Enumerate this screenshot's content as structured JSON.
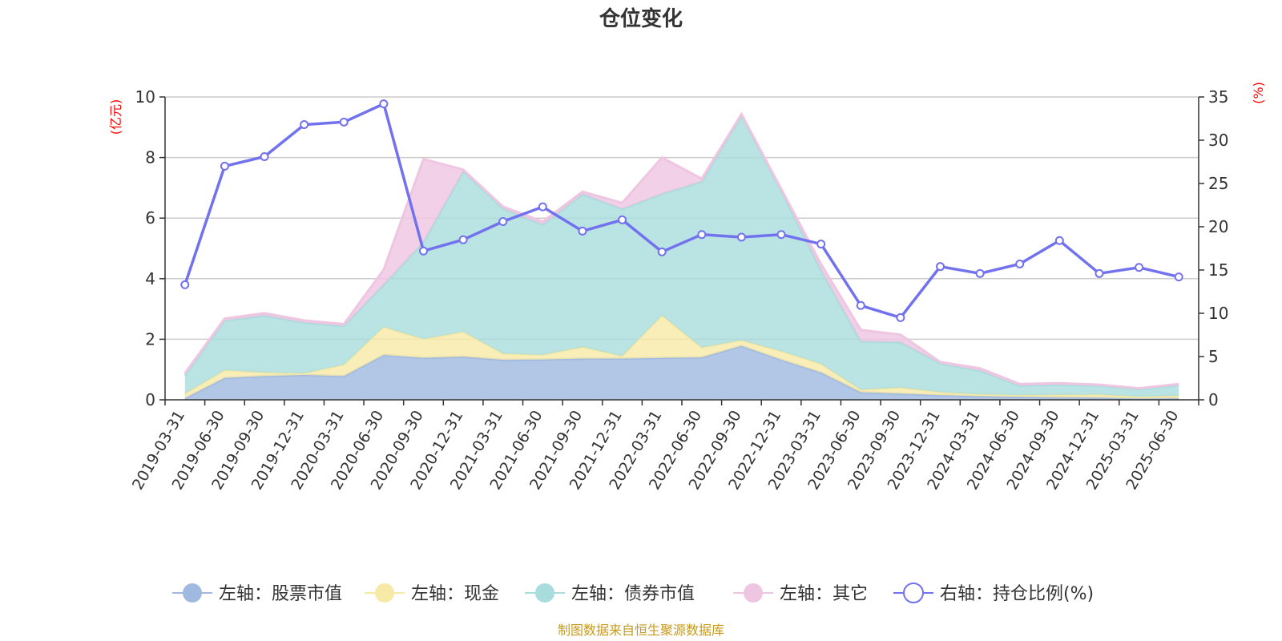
{
  "chart_data": {
    "type": "area",
    "title": "仓位变化",
    "left_unit": "(亿元)",
    "right_unit": "(%)",
    "x": [
      "2019-03-31",
      "2019-06-30",
      "2019-09-30",
      "2019-12-31",
      "2020-03-31",
      "2020-06-30",
      "2020-09-30",
      "2020-12-31",
      "2021-03-31",
      "2021-06-30",
      "2021-09-30",
      "2021-12-31",
      "2022-03-31",
      "2022-06-30",
      "2022-09-30",
      "2022-12-31",
      "2023-03-31",
      "2023-06-30",
      "2023-09-30",
      "2023-12-31",
      "2024-03-31",
      "2024-06-30",
      "2024-09-30",
      "2024-12-31",
      "2025-03-31",
      "2025-06-30"
    ],
    "left_axis": {
      "min": 0,
      "max": 10,
      "ticks": [
        0,
        2,
        4,
        6,
        8,
        10
      ]
    },
    "right_axis": {
      "min": 0,
      "max": 35,
      "ticks": [
        0,
        5,
        10,
        15,
        20,
        25,
        30,
        35
      ]
    },
    "grid": true,
    "legend_position": "bottom",
    "series": [
      {
        "name": "左轴：股票市值",
        "axis": "left",
        "stack": true,
        "color": "#9fb9e0",
        "values": [
          0.05,
          0.72,
          0.78,
          0.82,
          0.78,
          1.48,
          1.38,
          1.42,
          1.32,
          1.33,
          1.36,
          1.36,
          1.38,
          1.4,
          1.78,
          1.32,
          0.9,
          0.25,
          0.2,
          0.15,
          0.12,
          0.1,
          0.08,
          0.07,
          0.04,
          0.05
        ]
      },
      {
        "name": "左轴：现金",
        "axis": "left",
        "stack": true,
        "color": "#f7e9a6",
        "values": [
          0.15,
          0.25,
          0.12,
          0.05,
          0.38,
          0.92,
          0.62,
          0.82,
          0.2,
          0.15,
          0.38,
          0.08,
          1.4,
          0.32,
          0.18,
          0.28,
          0.28,
          0.08,
          0.2,
          0.1,
          0.06,
          0.05,
          0.08,
          0.1,
          0.06,
          0.08
        ]
      },
      {
        "name": "左轴：债券市值",
        "axis": "left",
        "stack": true,
        "color": "#a9dcdc",
        "values": [
          0.6,
          1.65,
          1.88,
          1.68,
          1.28,
          1.4,
          3.2,
          5.3,
          4.8,
          4.3,
          5.05,
          4.86,
          4.02,
          5.48,
          7.42,
          5.3,
          3.1,
          1.6,
          1.5,
          0.95,
          0.78,
          0.32,
          0.34,
          0.3,
          0.25,
          0.35
        ]
      },
      {
        "name": "左轴：其它",
        "axis": "left",
        "stack": true,
        "color": "#efc6e2",
        "values": [
          0.08,
          0.06,
          0.08,
          0.07,
          0.06,
          0.5,
          2.75,
          0.06,
          0.06,
          0.1,
          0.08,
          0.2,
          1.2,
          0.1,
          0.05,
          0.06,
          0.2,
          0.38,
          0.25,
          0.05,
          0.08,
          0.05,
          0.05,
          0.03,
          0.03,
          0.04
        ]
      },
      {
        "name": "右轴：持仓比例(%)",
        "axis": "right",
        "type": "line",
        "color": "#7272ee",
        "values": [
          13.3,
          27.0,
          28.1,
          31.8,
          32.1,
          34.2,
          17.2,
          18.5,
          20.6,
          22.3,
          19.5,
          20.8,
          17.1,
          19.1,
          18.8,
          19.1,
          18.0,
          10.9,
          9.5,
          15.4,
          14.6,
          15.7,
          18.4,
          14.6,
          15.3,
          14.2
        ]
      }
    ],
    "source": "制图数据来自恒生聚源数据库"
  }
}
